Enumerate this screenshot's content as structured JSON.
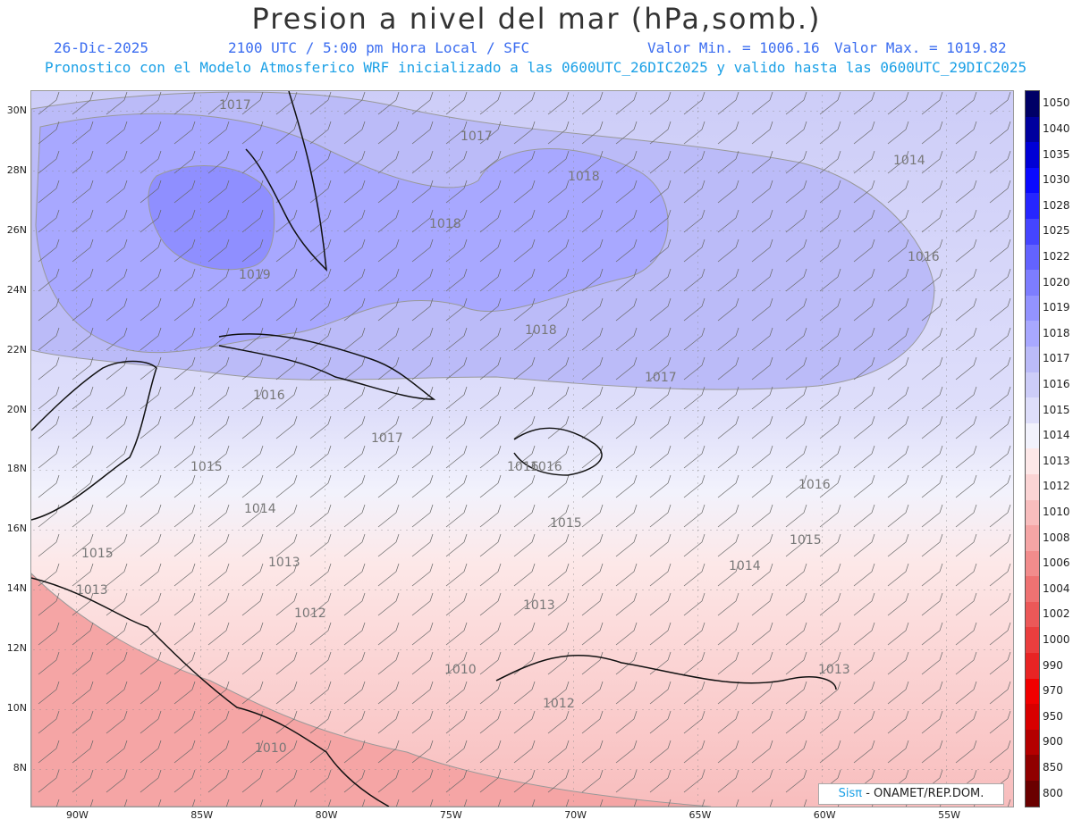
{
  "title": "Presion a nivel del mar (hPa,somb.)",
  "date": "26-Dic-2025",
  "time_label": "2100 UTC / 5:00 pm Hora Local / SFC",
  "min_label": "Valor Min. = 1006.16",
  "max_label": "Valor Max. = 1019.82",
  "forecast_label": "Pronostico con el Modelo Atmosferico WRF inicializado a las 0600UTC_26DIC2025 y valido hasta las  0600UTC_29DIC2025",
  "credit": {
    "logo": "Sisπ",
    "text": " - ONAMET/REP.DOM."
  },
  "lat_labels": [
    "30N",
    "28N",
    "26N",
    "24N",
    "22N",
    "20N",
    "18N",
    "16N",
    "14N",
    "12N",
    "10N",
    "8N"
  ],
  "lon_labels": [
    "90W",
    "85W",
    "80W",
    "75W",
    "70W",
    "65W",
    "60W",
    "55W"
  ],
  "contour_labels": [
    "1017",
    "1017",
    "1018",
    "1018",
    "1019",
    "1018",
    "1017",
    "1016",
    "1014",
    "1016",
    "1017",
    "1016",
    "1015",
    "1016",
    "1015",
    "1014",
    "1015",
    "1013",
    "1015",
    "1013",
    "1014",
    "1012",
    "1013",
    "1010",
    "1012",
    "1013",
    "1010",
    "1016"
  ],
  "legend": {
    "levels": [
      "1050",
      "1040",
      "1035",
      "1030",
      "1028",
      "1025",
      "1022",
      "1020",
      "1019",
      "1018",
      "1017",
      "1016",
      "1015",
      "1014",
      "1013",
      "1012",
      "1010",
      "1008",
      "1006",
      "1004",
      "1002",
      "1000",
      "990",
      "970",
      "950",
      "900",
      "850",
      "800"
    ],
    "colors": [
      "#000066",
      "#00009e",
      "#0000d6",
      "#0a0aff",
      "#2626ff",
      "#4545ff",
      "#6363ff",
      "#7d7dff",
      "#9393ff",
      "#a8a8ff",
      "#bbbbf8",
      "#cdcdf8",
      "#dedefa",
      "#f2f2fc",
      "#fde8e8",
      "#fbd4d4",
      "#f8bdbd",
      "#f5a5a5",
      "#f28c8c",
      "#ef7272",
      "#ec5858",
      "#ea3e3e",
      "#e82424",
      "#f00000",
      "#d80000",
      "#b40000",
      "#900000",
      "#6a0000"
    ]
  }
}
